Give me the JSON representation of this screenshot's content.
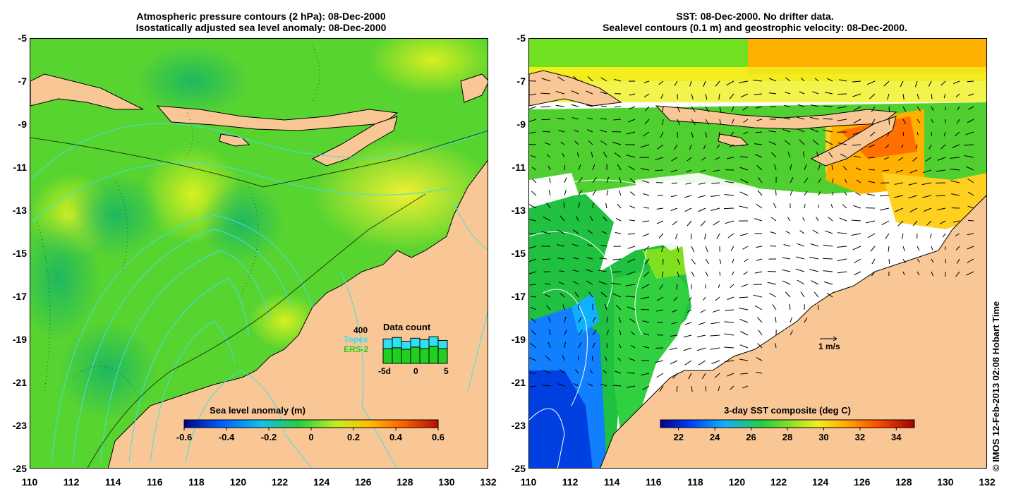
{
  "left_panel": {
    "title_line1": "Atmospheric pressure contours (2 hPa): 08-Dec-2000",
    "title_line2": "Isostatically adjusted sea level anomaly: 08-Dec-2000",
    "colorbar": {
      "label": "Sea level anomaly (m)",
      "ticks": [
        "-0.6",
        "-0.4",
        "-0.2",
        "0",
        "0.2",
        "0.4",
        "0.6"
      ]
    },
    "data_count": {
      "title": "Data count",
      "max_label": "400",
      "topex_label": "Topex",
      "ers_label": "ERS-2",
      "axis_labels": [
        "-5d",
        "0",
        "5"
      ],
      "topex_color": "#30e0f0",
      "ers_color": "#20d020",
      "topex_counts": [
        330,
        350,
        300,
        340,
        320,
        360,
        310
      ],
      "ers_counts": [
        200,
        210,
        190,
        220,
        200,
        230,
        200
      ]
    }
  },
  "right_panel": {
    "title_line1": "SST: 08-Dec-2000. No drifter data.",
    "title_line2": "Sealevel contours (0.1 m) and geostrophic velocity: 08-Dec-2000.",
    "scale_arrow_label": "1 m/s",
    "colorbar": {
      "label": "3-day SST composite (deg C)",
      "ticks": [
        "22",
        "24",
        "26",
        "28",
        "30",
        "32",
        "34"
      ]
    }
  },
  "axes": {
    "y_ticks": [
      "-5",
      "-7",
      "-9",
      "-11",
      "-13",
      "-15",
      "-17",
      "-19",
      "-21",
      "-23",
      "-25"
    ],
    "x_ticks": [
      "110",
      "112",
      "114",
      "116",
      "118",
      "120",
      "122",
      "124",
      "126",
      "128",
      "130",
      "132"
    ]
  },
  "credit": "© IMOS 12-Feb-2013 02:08 Hobart Time",
  "colors": {
    "land": "#f9c796",
    "ocean_base": "#58d430",
    "sla_scale": [
      "#00008f",
      "#0060ff",
      "#10c0f0",
      "#20d040",
      "#c0f020",
      "#ffc000",
      "#ff6000",
      "#b01000"
    ],
    "sst_scale": [
      "#000090",
      "#0040ff",
      "#10b0ff",
      "#20d040",
      "#80e020",
      "#f0f020",
      "#ffb000",
      "#ff5000",
      "#a00000"
    ]
  }
}
